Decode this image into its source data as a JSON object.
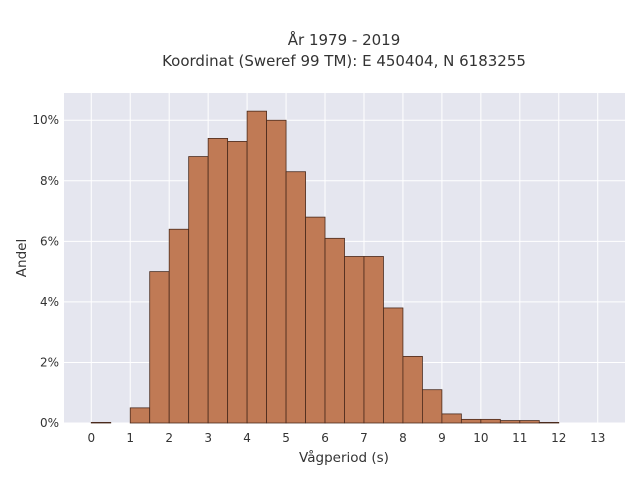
{
  "chart_data": {
    "type": "bar",
    "title_lines": [
      "År 1979 - 2019",
      "Koordinat (Sweref 99 TM): E 450404, N 6183255"
    ],
    "xlabel": "Vågperiod (s)",
    "ylabel": "Andel",
    "x_ticks": [
      "0",
      "1",
      "2",
      "3",
      "4",
      "5",
      "6",
      "7",
      "8",
      "9",
      "10",
      "11",
      "12",
      "13"
    ],
    "y_ticks": [
      "0%",
      "2%",
      "4%",
      "6%",
      "8%",
      "10%"
    ],
    "y_tick_values": [
      0,
      2,
      4,
      6,
      8,
      10
    ],
    "xlim": [
      -0.7,
      13.7
    ],
    "ylim": [
      0,
      10.9
    ],
    "bin_width": 0.5,
    "bins": [
      {
        "x0": 0.0,
        "value": 0.02
      },
      {
        "x0": 1.0,
        "value": 0.5
      },
      {
        "x0": 1.5,
        "value": 5.0
      },
      {
        "x0": 2.0,
        "value": 6.4
      },
      {
        "x0": 2.5,
        "value": 8.8
      },
      {
        "x0": 3.0,
        "value": 9.4
      },
      {
        "x0": 3.5,
        "value": 9.3
      },
      {
        "x0": 4.0,
        "value": 10.3
      },
      {
        "x0": 4.5,
        "value": 10.0
      },
      {
        "x0": 5.0,
        "value": 8.3
      },
      {
        "x0": 5.5,
        "value": 6.8
      },
      {
        "x0": 6.0,
        "value": 6.1
      },
      {
        "x0": 6.5,
        "value": 5.5
      },
      {
        "x0": 7.0,
        "value": 5.5
      },
      {
        "x0": 7.5,
        "value": 3.8
      },
      {
        "x0": 8.0,
        "value": 2.2
      },
      {
        "x0": 8.5,
        "value": 1.1
      },
      {
        "x0": 9.0,
        "value": 0.3
      },
      {
        "x0": 9.5,
        "value": 0.12
      },
      {
        "x0": 10.0,
        "value": 0.12
      },
      {
        "x0": 10.5,
        "value": 0.08
      },
      {
        "x0": 11.0,
        "value": 0.08
      },
      {
        "x0": 11.5,
        "value": 0.02
      }
    ],
    "grid": true,
    "legend": "none",
    "colors": {
      "bar_fill": "#c07a55",
      "bar_edge": "#4a2a1c",
      "plot_background": "#e5e6ef",
      "grid": "#ffffff",
      "text": "#333333"
    }
  }
}
